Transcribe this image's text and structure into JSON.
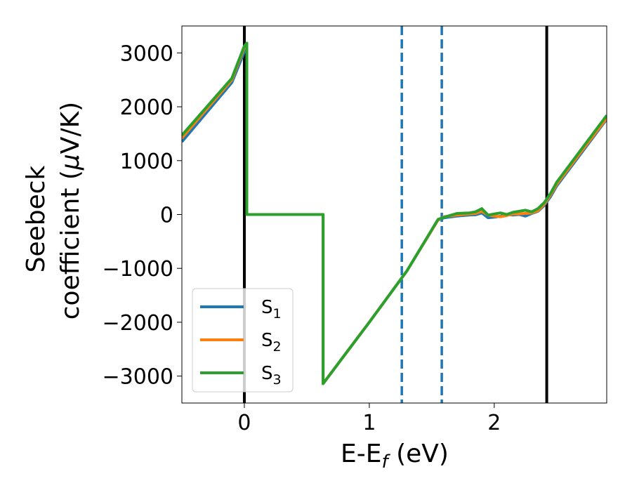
{
  "chart_data": {
    "type": "line",
    "title": "",
    "xlabel": "E-E",
    "xlabel_sub": "f",
    "xlabel_unit": " (eV)",
    "ylabel_line1": "Seebeck",
    "ylabel_line2_prefix": "coefficient  (",
    "ylabel_mu": "μ",
    "ylabel_line2_suffix": "V/K)",
    "xlim": [
      -0.5,
      2.9
    ],
    "ylim": [
      -3500,
      3500
    ],
    "xticks": [
      0,
      1,
      2
    ],
    "xtick_labels": [
      "0",
      "1",
      "2"
    ],
    "yticks": [
      3000,
      2000,
      1000,
      0,
      -1000,
      -2000,
      -3000
    ],
    "ytick_labels": [
      "3000",
      "2000",
      "1000",
      "0",
      "−1000",
      "−2000",
      "−3000"
    ],
    "grid": false,
    "legend_position": "lower-left",
    "series": [
      {
        "name": "S",
        "name_sub": "1",
        "color": "#1f77b4",
        "x": [
          -0.5,
          -0.1,
          0.0,
          0.02,
          0.02,
          0.63,
          0.63,
          1.0,
          1.3,
          1.55,
          1.6,
          1.7,
          1.8,
          1.85,
          1.9,
          1.95,
          2.0,
          2.05,
          2.1,
          2.15,
          2.2,
          2.25,
          2.3,
          2.35,
          2.4,
          2.45,
          2.5,
          2.7,
          2.9
        ],
        "y": [
          1350,
          2450,
          3020,
          3180,
          0,
          0,
          -3140,
          -2000,
          -1050,
          -100,
          -60,
          -30,
          -10,
          -5,
          30,
          -60,
          -50,
          -30,
          0,
          -10,
          0,
          -30,
          20,
          60,
          170,
          330,
          530,
          1150,
          1770
        ]
      },
      {
        "name": "S",
        "name_sub": "2",
        "color": "#ff7f0e",
        "x": [
          -0.5,
          -0.1,
          0.0,
          0.02,
          0.02,
          0.63,
          0.63,
          1.0,
          1.3,
          1.55,
          1.6,
          1.7,
          1.8,
          1.85,
          1.9,
          1.95,
          2.0,
          2.05,
          2.1,
          2.15,
          2.2,
          2.25,
          2.3,
          2.35,
          2.4,
          2.45,
          2.5,
          2.7,
          2.9
        ],
        "y": [
          1420,
          2500,
          3100,
          3180,
          0,
          0,
          -3140,
          -2000,
          -1050,
          -100,
          -40,
          -10,
          10,
          20,
          60,
          -10,
          -30,
          -40,
          -20,
          10,
          10,
          20,
          30,
          70,
          190,
          360,
          560,
          1180,
          1790
        ]
      },
      {
        "name": "S",
        "name_sub": "3",
        "color": "#2ca02c",
        "x": [
          -0.5,
          -0.1,
          0.0,
          0.02,
          0.02,
          0.63,
          0.63,
          1.0,
          1.3,
          1.55,
          1.6,
          1.7,
          1.8,
          1.85,
          1.9,
          1.95,
          2.0,
          2.05,
          2.1,
          2.15,
          2.2,
          2.25,
          2.3,
          2.35,
          2.4,
          2.45,
          2.5,
          2.7,
          2.9
        ],
        "y": [
          1470,
          2530,
          3130,
          3180,
          0,
          0,
          -3140,
          -2000,
          -1050,
          -90,
          -50,
          20,
          30,
          50,
          110,
          -10,
          10,
          30,
          0,
          40,
          60,
          80,
          50,
          110,
          220,
          390,
          600,
          1220,
          1840
        ]
      }
    ],
    "vertical_lines": [
      {
        "x": 0.0,
        "style": "solid",
        "color": "#000000"
      },
      {
        "x": 2.42,
        "style": "solid",
        "color": "#000000"
      },
      {
        "x": 1.26,
        "style": "dashed",
        "color": "#1f77b4"
      },
      {
        "x": 1.58,
        "style": "dashed",
        "color": "#1f77b4"
      }
    ]
  }
}
